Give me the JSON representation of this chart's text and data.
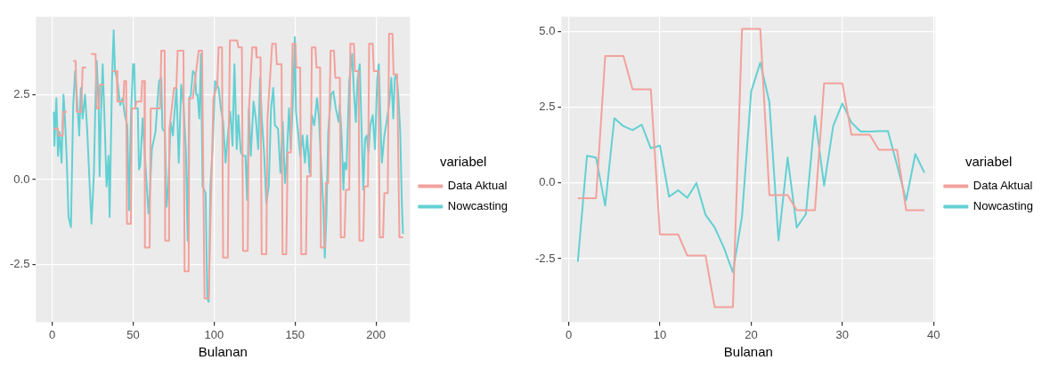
{
  "chart_data": [
    {
      "type": "line",
      "xlabel": "Bulanan",
      "legend_title": "variabel",
      "legend": "right",
      "grid": true,
      "marker": "none",
      "line_style": "solid",
      "xlim": [
        -10,
        221
      ],
      "xticks": [
        0,
        50,
        100,
        150,
        200
      ],
      "ylim": [
        -4.2,
        4.8
      ],
      "yticks": [
        {
          "value": -2.5,
          "label": "-2.5"
        },
        {
          "value": 0,
          "label": "0.0"
        },
        {
          "value": 2.5,
          "label": "2.5"
        }
      ],
      "series": [
        {
          "name": "Data Aktual",
          "color": "#f3a19b",
          "x": [
            1,
            3.5,
            4,
            6.5,
            7,
            9,
            11,
            13,
            14.5,
            15.2,
            18,
            18.8,
            21,
            22,
            24,
            26.8,
            27.5,
            29,
            29.5,
            31.9,
            34,
            37,
            39.9,
            40.3,
            44,
            44.5,
            45.7,
            46.2,
            48.6,
            49.3,
            51.4,
            52,
            55,
            55.6,
            57,
            57.3,
            60.2,
            60.9,
            66.7,
            67.4,
            69.5,
            69.8,
            72.2,
            72.4,
            75.3,
            76.7,
            77.5,
            81.1,
            81.8,
            84.3,
            84.7,
            86.9,
            90.5,
            92.6,
            94.1,
            96.7,
            99.6,
            102,
            102.8,
            104.9,
            105.6,
            108.5,
            109.2,
            109.8,
            114.3,
            115,
            117.2,
            117.9,
            120.8,
            121.5,
            123.6,
            125.8,
            126.2,
            128.7,
            129.4,
            132.3,
            133,
            135.9,
            138.1,
            138.8,
            141.7,
            142.3,
            144.6,
            145.5,
            147.4,
            148.5,
            150.3,
            150.8,
            153.2,
            153.9,
            156.8,
            157.5,
            159.7,
            160.4,
            162.6,
            163.3,
            165.5,
            166,
            168.4,
            169.1,
            170.5,
            172,
            174.1,
            174.9,
            177.7,
            178.3,
            180.6,
            181.4,
            183.5,
            184.2,
            186.4,
            187,
            189.3,
            189.8,
            192.2,
            192.9,
            195.1,
            195.8,
            198,
            198.7,
            201.6,
            202.3,
            204.4,
            205.2,
            207.3,
            208.1,
            210.2,
            210.9,
            213.1,
            214.5,
            216.7
          ],
          "values": [
            1.5,
            1.5,
            1.3,
            1.3,
            2,
            2,
            null,
            3.5,
            3.5,
            2,
            2,
            3.3,
            3.3,
            null,
            3.7,
            3.7,
            2.1,
            2.1,
            2.8,
            2.8,
            null,
            3.2,
            3.2,
            2.3,
            2.3,
            2.9,
            2.9,
            -1.3,
            -1.3,
            2.1,
            2.1,
            2.3,
            2.3,
            2.9,
            2.9,
            -2,
            -2,
            2.1,
            2.1,
            3.8,
            3.8,
            -1.8,
            -1.8,
            1.5,
            2.7,
            2.7,
            3.8,
            3.8,
            -2.7,
            -2.7,
            2.4,
            2.4,
            3.8,
            3.8,
            -3.5,
            -3.5,
            2.4,
            2.8,
            3.9,
            3.9,
            -2.3,
            -2.3,
            1.7,
            4.1,
            4.1,
            3.9,
            3.9,
            -2.1,
            -2.1,
            2,
            3.9,
            3.9,
            3.6,
            3.6,
            -2.2,
            -2.2,
            1.8,
            4,
            4,
            3.4,
            3.4,
            -2.2,
            -2.2,
            0.8,
            0.8,
            4,
            4,
            3.3,
            3.3,
            -2.2,
            -2.2,
            0.1,
            0.1,
            3.9,
            3.9,
            3.3,
            3.3,
            -2,
            -2,
            -0.1,
            -0.1,
            3.8,
            3.8,
            3,
            3,
            -1.7,
            -1.7,
            -0.3,
            -0.3,
            4,
            4,
            3.2,
            3.2,
            -1.8,
            -1.8,
            -0.2,
            -0.2,
            4,
            4,
            3.2,
            3.2,
            -1.7,
            -1.7,
            -0.4,
            -0.4,
            4.3,
            4.3,
            3.1,
            3.1,
            -1.7,
            -1.7
          ]
        },
        {
          "name": "Nowcasting",
          "color": "#62d0d3",
          "x": [
            1,
            1.4,
            2.6,
            3.6,
            4.6,
            5.8,
            7,
            8,
            9,
            10.1,
            11.6,
            13,
            14.2,
            15.2,
            16.7,
            17.7,
            18.8,
            20.3,
            21.7,
            23.2,
            24.3,
            25.8,
            26.8,
            27.5,
            28.7,
            29.3,
            30.1,
            31.2,
            32.6,
            33.6,
            34.8,
            35.5,
            37,
            38,
            38.8,
            39.9,
            40.6,
            42,
            43.5,
            44.9,
            46.4,
            47.5,
            48.6,
            50,
            50.7,
            51.4,
            52.9,
            53.6,
            54.4,
            55.9,
            57.3,
            59.5,
            60.2,
            61.6,
            63.8,
            66,
            67.4,
            68.1,
            69.6,
            70.7,
            71.7,
            73.2,
            74.6,
            75.3,
            76.8,
            78.2,
            79.7,
            81.1,
            82.6,
            83.7,
            84.7,
            85.7,
            86.9,
            88.3,
            89,
            89.8,
            90.9,
            91.9,
            92.9,
            94.8,
            95.8,
            96.7,
            97.7,
            99.2,
            100.6,
            102.8,
            104.2,
            105.6,
            107.1,
            108.5,
            110,
            111.4,
            112.6,
            114,
            115,
            116.5,
            117.9,
            119.4,
            120.4,
            121.5,
            122.7,
            124.4,
            125.8,
            127.3,
            128.4,
            129.5,
            130.9,
            132.3,
            133.8,
            135.2,
            136.6,
            137.6,
            139.5,
            141,
            142.4,
            143.8,
            144.8,
            146.3,
            147.4,
            148.9,
            149.9,
            150.6,
            152.1,
            153.2,
            154.7,
            156.1,
            157.5,
            159,
            160.4,
            161.9,
            163.6,
            164.8,
            166.5,
            167.6,
            168.4,
            169.4,
            170.5,
            172.3,
            173.7,
            175.2,
            177,
            177.7,
            178.9,
            179.9,
            180.6,
            181.8,
            183.5,
            185.3,
            186.4,
            187.6,
            188.6,
            190,
            190.7,
            192.2,
            193.3,
            194.3,
            195.4,
            196.5,
            198,
            199.4,
            200.8,
            201.8,
            203,
            203.7,
            205.2,
            206.6,
            208.1,
            209.5,
            210.7,
            211.7,
            212.7,
            213.8,
            215,
            216,
            216.7
          ],
          "values": [
            2,
            1,
            2.4,
            0.7,
            1.4,
            0.5,
            2.5,
            1.7,
            0.6,
            -1.1,
            -1.4,
            2.2,
            3.2,
            2.5,
            1.3,
            2.7,
            1.8,
            2.5,
            1.4,
            -0.2,
            -1.3,
            0.2,
            2.5,
            3.5,
            2.2,
            0.1,
            1.8,
            3.4,
            1.4,
            -0.2,
            0.7,
            -1.1,
            3,
            4.4,
            3.2,
            3,
            2.8,
            2.2,
            2.4,
            1.9,
            1.6,
            -0.9,
            1.8,
            3.4,
            3.4,
            2.1,
            2.1,
            0.3,
            0.4,
            1.8,
            0.7,
            -1,
            -0.5,
            0.9,
            1.4,
            2.9,
            3,
            1.5,
            1.4,
            -0.8,
            -0.2,
            1.7,
            1.3,
            1.8,
            2.7,
            0.5,
            2.8,
            2.2,
            0.9,
            -1.8,
            2.4,
            2.5,
            3.2,
            3.1,
            2.5,
            2.5,
            1.8,
            3.7,
            -0.2,
            -0.4,
            -3.5,
            -3.6,
            -0.2,
            1,
            2.9,
            2.7,
            2.1,
            1.7,
            0.5,
            1.3,
            2,
            1,
            3.4,
            0.9,
            1.9,
            0.8,
            0.7,
            0.7,
            -0.6,
            2.1,
            0.7,
            2.3,
            1.8,
            0.9,
            3,
            1.8,
            0.8,
            -0.7,
            -0.2,
            2.1,
            2.7,
            1.6,
            1.5,
            0.2,
            1.7,
            -0.1,
            0.5,
            2.1,
            0.9,
            2.5,
            4.2,
            2,
            1.3,
            0.7,
            1.3,
            0.5,
            1.3,
            0.2,
            1.9,
            1.6,
            2.4,
            1.8,
            0.1,
            -0.9,
            -2.3,
            -1.1,
            1.4,
            2.5,
            2.6,
            2.1,
            1.7,
            2.2,
            1.2,
            -0.3,
            0.5,
            0.3,
            2.9,
            3.7,
            2.6,
            1.7,
            2.9,
            3.4,
            2.2,
            -0.3,
            1.2,
            1.3,
            0.8,
            1.6,
            1.9,
            0.9,
            3,
            3.4,
            1.4,
            0.5,
            1.3,
            1.7,
            2.2,
            3,
            1.8,
            3,
            3.1,
            2.5,
            1.4,
            -0.7,
            -1.6
          ]
        }
      ]
    },
    {
      "type": "line",
      "xlabel": "Bulanan",
      "legend_title": "variabel",
      "legend": "right",
      "grid": true,
      "marker": "none",
      "line_style": "solid",
      "xlim": [
        -0.8,
        40.2
      ],
      "xticks": [
        0,
        10,
        20,
        30,
        40
      ],
      "ylim": [
        -4.6,
        5.5
      ],
      "yticks": [
        {
          "value": -2.5,
          "label": "-2.5"
        },
        {
          "value": 0,
          "label": "0.0"
        },
        {
          "value": 2.5,
          "label": "2.5"
        },
        {
          "value": 5,
          "label": "5.0"
        }
      ],
      "x": [
        1,
        2,
        3,
        4,
        5,
        6,
        7,
        8,
        9,
        10,
        11,
        12,
        13,
        14,
        15,
        16,
        17,
        18,
        19,
        20,
        21,
        22,
        23,
        24,
        25,
        26,
        27,
        28,
        29,
        30,
        31,
        32,
        33,
        34,
        35,
        36,
        37,
        38,
        39
      ],
      "series": [
        {
          "name": "Data Aktual",
          "color": "#f3a19b",
          "values": [
            -0.5,
            -0.5,
            -0.5,
            4.2,
            4.2,
            4.2,
            3.1,
            3.1,
            3.1,
            -1.7,
            -1.7,
            -1.7,
            -2.4,
            -2.4,
            -2.4,
            -4.1,
            -4.1,
            -4.1,
            5.1,
            5.1,
            5.1,
            -0.4,
            -0.4,
            -0.4,
            -0.9,
            -0.9,
            -0.9,
            3.3,
            3.3,
            3.3,
            1.6,
            1.6,
            1.6,
            1.1,
            1.1,
            1.1,
            -0.9,
            -0.9,
            -0.9
          ]
        },
        {
          "name": "Nowcasting",
          "color": "#62d0d3",
          "values": [
            -2.6,
            0.9,
            0.84,
            -0.75,
            2.14,
            1.88,
            1.75,
            1.93,
            1.15,
            1.24,
            -0.45,
            -0.24,
            -0.49,
            0,
            -1.05,
            -1.47,
            -2.13,
            -2.95,
            -1.11,
            3.02,
            3.98,
            2.68,
            -1.9,
            0.84,
            -1.47,
            -1.03,
            2.22,
            -0.09,
            1.89,
            2.63,
            2,
            1.7,
            1.7,
            1.72,
            1.72,
            0.59,
            -0.57,
            0.96,
            0.34
          ]
        }
      ]
    }
  ]
}
